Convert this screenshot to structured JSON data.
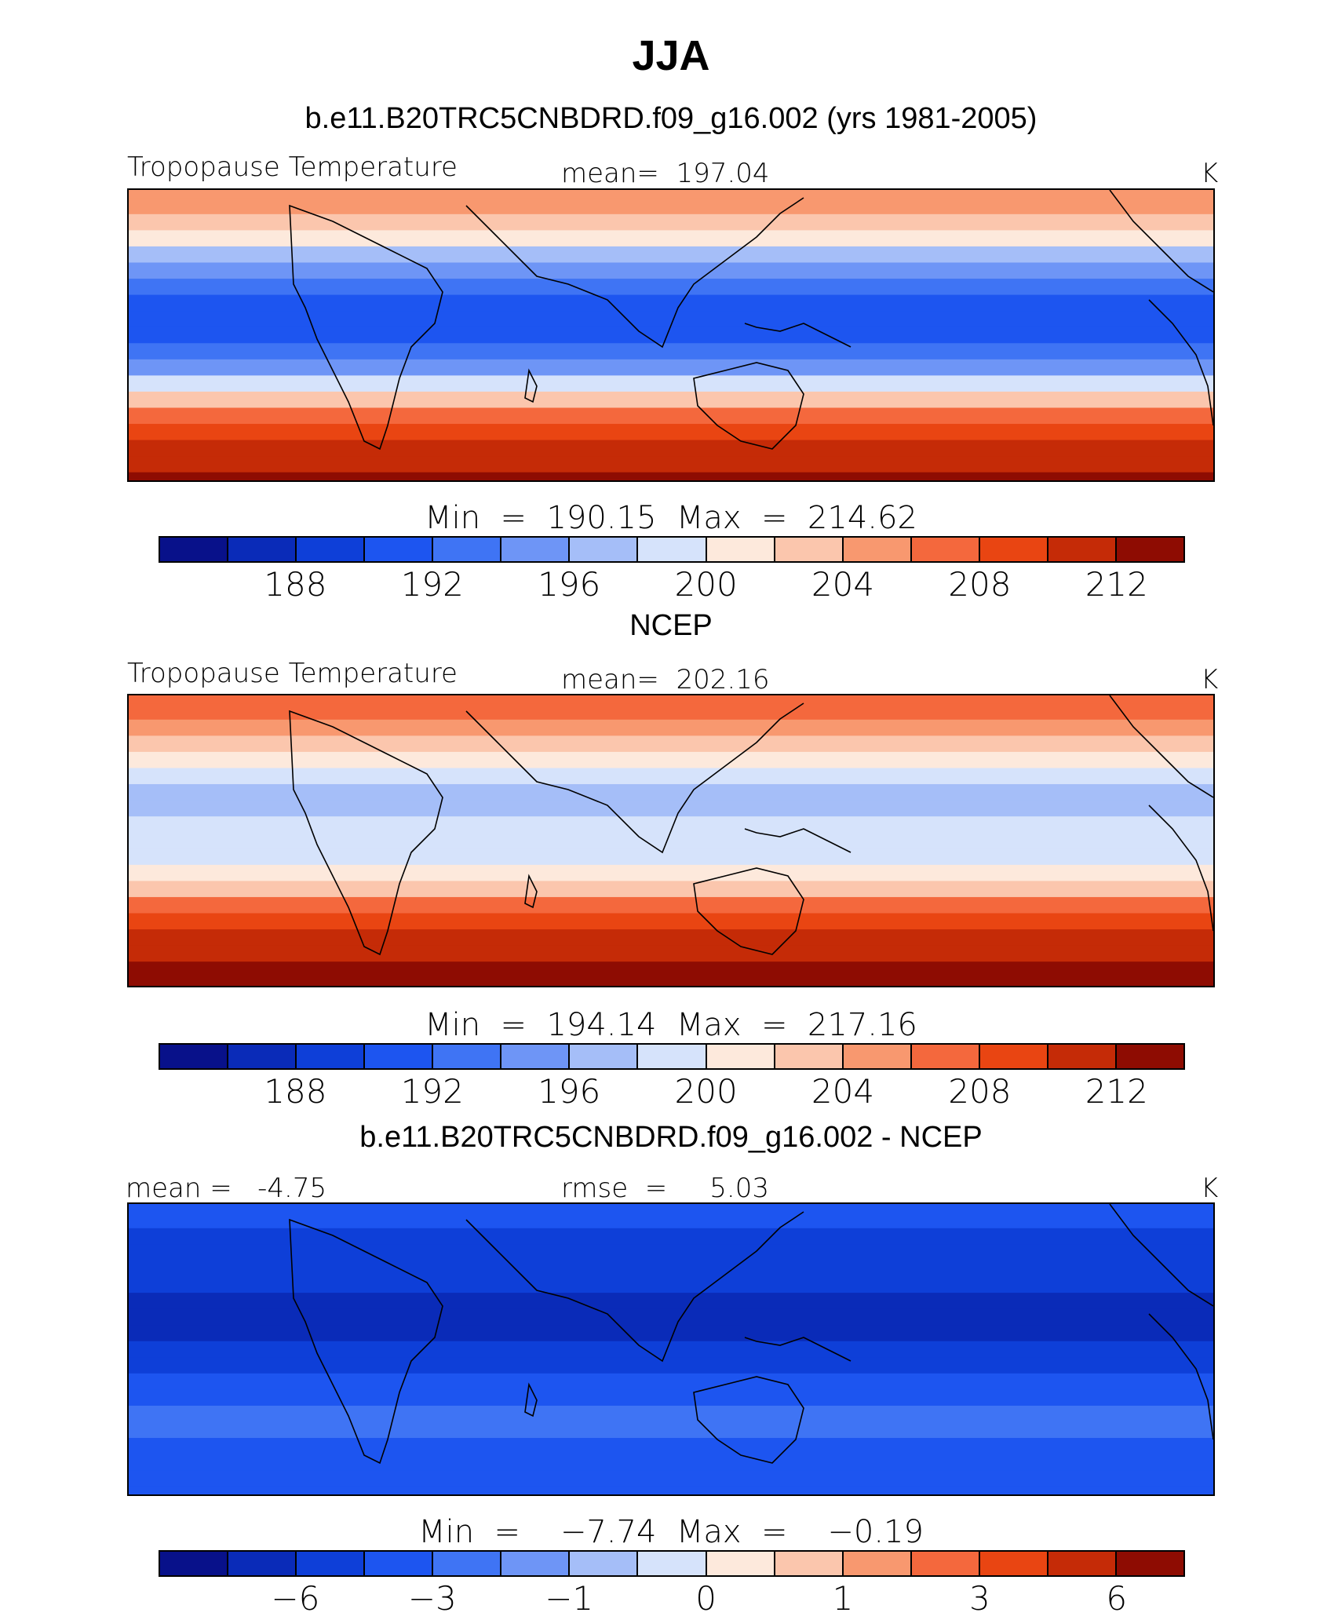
{
  "figure": {
    "title": "JJA"
  },
  "palette": [
    "#08118a",
    "#0a2bb8",
    "#0e3fd8",
    "#1d55f0",
    "#3f74f4",
    "#6e95f6",
    "#a5bef8",
    "#d6e3fb",
    "#fde9dc",
    "#fbc6ad",
    "#f8986f",
    "#f4683d",
    "#e94512",
    "#c52b07",
    "#8e0c02"
  ],
  "panels": [
    {
      "title": "b.e11.B20TRC5CNBDRD.f09_g16.002 (yrs 1981-2005)",
      "left_label": "Tropopause Temperature",
      "center_label": "mean=  197.04",
      "units": "K",
      "minmax": "Min  =  190.15  Max  =  214.62",
      "ticks": [
        "188",
        "192",
        "196",
        "200",
        "204",
        "208",
        "212"
      ],
      "field": [
        {
          "lat": 90,
          "level": 10
        },
        {
          "lat": 80,
          "level": 10
        },
        {
          "lat": 70,
          "level": 9
        },
        {
          "lat": 60,
          "level": 8
        },
        {
          "lat": 50,
          "level": 6
        },
        {
          "lat": 40,
          "level": 5
        },
        {
          "lat": 30,
          "level": 4
        },
        {
          "lat": 20,
          "level": 3
        },
        {
          "lat": 10,
          "level": 3
        },
        {
          "lat": 0,
          "level": 3
        },
        {
          "lat": -10,
          "level": 4
        },
        {
          "lat": -20,
          "level": 5
        },
        {
          "lat": -30,
          "level": 7
        },
        {
          "lat": -40,
          "level": 9
        },
        {
          "lat": -50,
          "level": 11
        },
        {
          "lat": -60,
          "level": 12
        },
        {
          "lat": -70,
          "level": 13
        },
        {
          "lat": -80,
          "level": 13
        },
        {
          "lat": -90,
          "level": 14
        }
      ]
    },
    {
      "title": "NCEP",
      "left_label": "Tropopause Temperature",
      "center_label": "mean=  202.16",
      "units": "K",
      "minmax": "Min  =  194.14  Max  =  217.16",
      "ticks": [
        "188",
        "192",
        "196",
        "200",
        "204",
        "208",
        "212"
      ],
      "field": [
        {
          "lat": 90,
          "level": 11
        },
        {
          "lat": 80,
          "level": 11
        },
        {
          "lat": 70,
          "level": 10
        },
        {
          "lat": 60,
          "level": 9
        },
        {
          "lat": 50,
          "level": 8
        },
        {
          "lat": 40,
          "level": 7
        },
        {
          "lat": 30,
          "level": 6
        },
        {
          "lat": 20,
          "level": 6
        },
        {
          "lat": 10,
          "level": 7
        },
        {
          "lat": 0,
          "level": 7
        },
        {
          "lat": -10,
          "level": 7
        },
        {
          "lat": -20,
          "level": 8
        },
        {
          "lat": -30,
          "level": 9
        },
        {
          "lat": -40,
          "level": 11
        },
        {
          "lat": -50,
          "level": 12
        },
        {
          "lat": -60,
          "level": 13
        },
        {
          "lat": -70,
          "level": 13
        },
        {
          "lat": -80,
          "level": 14
        },
        {
          "lat": -90,
          "level": 14
        }
      ]
    },
    {
      "title": "b.e11.B20TRC5CNBDRD.f09_g16.002 - NCEP",
      "left_label": "mean =   -4.75",
      "center_label": "rmse  =     5.03",
      "units": "K",
      "minmax": "Min  =    −7.74  Max  =    −0.19",
      "ticks": [
        "−6",
        "−3",
        "−1",
        "0",
        "1",
        "3",
        "6"
      ],
      "field": [
        {
          "lat": 90,
          "level": 3
        },
        {
          "lat": 80,
          "level": 3
        },
        {
          "lat": 70,
          "level": 2
        },
        {
          "lat": 60,
          "level": 2
        },
        {
          "lat": 50,
          "level": 2
        },
        {
          "lat": 40,
          "level": 2
        },
        {
          "lat": 30,
          "level": 1
        },
        {
          "lat": 20,
          "level": 1
        },
        {
          "lat": 10,
          "level": 1
        },
        {
          "lat": 0,
          "level": 2
        },
        {
          "lat": -10,
          "level": 2
        },
        {
          "lat": -20,
          "level": 3
        },
        {
          "lat": -30,
          "level": 3
        },
        {
          "lat": -40,
          "level": 4
        },
        {
          "lat": -50,
          "level": 4
        },
        {
          "lat": -60,
          "level": 3
        },
        {
          "lat": -70,
          "level": 3
        },
        {
          "lat": -80,
          "level": 3
        },
        {
          "lat": -90,
          "level": 3
        }
      ]
    }
  ]
}
